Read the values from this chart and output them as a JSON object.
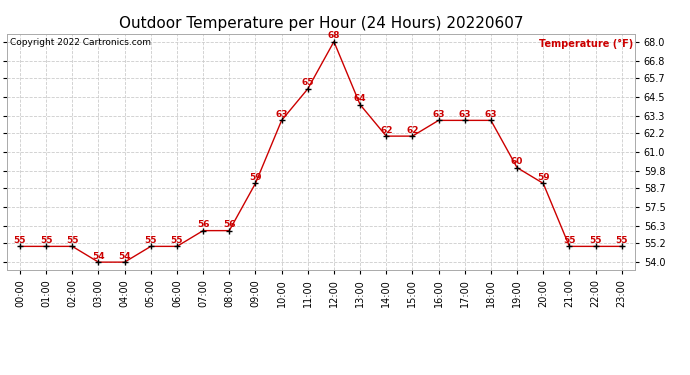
{
  "title": "Outdoor Temperature per Hour (24 Hours) 20220607",
  "copyright_text": "Copyright 2022 Cartronics.com",
  "legend_label": "Temperature (°F)",
  "hours": [
    0,
    1,
    2,
    3,
    4,
    5,
    6,
    7,
    8,
    9,
    10,
    11,
    12,
    13,
    14,
    15,
    16,
    17,
    18,
    19,
    20,
    21,
    22,
    23
  ],
  "temps": [
    55,
    55,
    55,
    54,
    54,
    55,
    55,
    56,
    56,
    59,
    63,
    65,
    68,
    64,
    62,
    62,
    63,
    63,
    63,
    60,
    59,
    55,
    55,
    55
  ],
  "xlabels": [
    "00:00",
    "01:00",
    "02:00",
    "03:00",
    "04:00",
    "05:00",
    "06:00",
    "07:00",
    "08:00",
    "09:00",
    "10:00",
    "11:00",
    "12:00",
    "13:00",
    "14:00",
    "15:00",
    "16:00",
    "17:00",
    "18:00",
    "19:00",
    "20:00",
    "21:00",
    "22:00",
    "23:00"
  ],
  "ylim": [
    53.5,
    68.5
  ],
  "yticks": [
    54.0,
    55.2,
    56.3,
    57.5,
    58.7,
    59.8,
    61.0,
    62.2,
    63.3,
    64.5,
    65.7,
    66.8,
    68.0
  ],
  "line_color": "#cc0000",
  "marker_color": "black",
  "label_color": "#cc0000",
  "background_color": "#ffffff",
  "grid_color": "#cccccc",
  "title_fontsize": 11,
  "tick_fontsize": 7,
  "annotation_fontsize": 6.5,
  "copyright_fontsize": 6.5
}
